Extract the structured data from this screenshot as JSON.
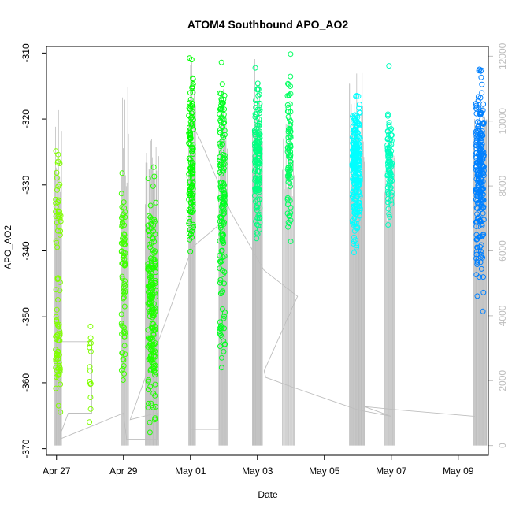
{
  "chart_data": {
    "type": "scatter",
    "title": "ATOM4 Southbound APO_AO2",
    "xlabel": "Date",
    "ylabel": "APO_AO2",
    "ylabel_right": "",
    "x_is_date": true,
    "xlim": [
      -0.3,
      12.9
    ],
    "ylim": [
      -371,
      -309
    ],
    "ylim_right": [
      -300,
      12300
    ],
    "x_ticks": [
      {
        "x": 0,
        "label": "Apr 27"
      },
      {
        "x": 2,
        "label": "Apr 29"
      },
      {
        "x": 4,
        "label": "May 01"
      },
      {
        "x": 6,
        "label": "May 03"
      },
      {
        "x": 8,
        "label": "May 05"
      },
      {
        "x": 10,
        "label": "May 07"
      },
      {
        "x": 12,
        "label": "May 09"
      }
    ],
    "y_ticks": [
      -370,
      -360,
      -350,
      -340,
      -330,
      -320,
      -310
    ],
    "y_ticks_right": [
      0,
      2000,
      4000,
      6000,
      8000,
      10000,
      12000
    ],
    "grid": false,
    "legend": "none",
    "colors": {
      "apr27": "#80ff00",
      "apr28": "#80ff00",
      "apr29": "#40ff00",
      "apr30": "#20ff00",
      "may01": "#00ff00",
      "may02": "#00ff20",
      "may03": "#00ff80",
      "may04": "#00ff60",
      "may06": "#00ffff",
      "may07": "#00ffc0",
      "may09": "#0080ff",
      "secondary_line": "#bebebe"
    },
    "series": [
      {
        "day": "Apr 27",
        "color_key": "apr27",
        "x_center": 0.05,
        "x_spread": 0.08,
        "groups": [
          [
            -334,
            5,
            30
          ],
          [
            -356,
            4,
            45
          ],
          [
            -345,
            10,
            12
          ],
          [
            -326,
            1,
            3
          ]
        ]
      },
      {
        "day": "Apr 28",
        "color_key": "apr28",
        "x_center": 1.0,
        "x_spread": 0.03,
        "groups": [
          [
            -359,
            4,
            15
          ]
        ]
      },
      {
        "day": "Apr 29",
        "color_key": "apr29",
        "x_center": 2.0,
        "x_spread": 0.06,
        "groups": [
          [
            -340,
            5,
            55
          ],
          [
            -357,
            3,
            12
          ],
          [
            -352,
            5,
            10
          ]
        ]
      },
      {
        "day": "Apr 30",
        "color_key": "apr30",
        "x_center": 2.85,
        "x_spread": 0.12,
        "groups": [
          [
            -346,
            4,
            110
          ],
          [
            -357,
            4,
            60
          ],
          [
            -338,
            4,
            25
          ]
        ]
      },
      {
        "day": "May 01",
        "color_key": "may01",
        "x_center": 4.02,
        "x_spread": 0.07,
        "groups": [
          [
            -318,
            4,
            35
          ],
          [
            -328,
            4,
            60
          ],
          [
            -336,
            3,
            20
          ]
        ]
      },
      {
        "day": "May 02",
        "color_key": "may02",
        "x_center": 4.95,
        "x_spread": 0.08,
        "groups": [
          [
            -325,
            5,
            70
          ],
          [
            -336,
            4,
            50
          ],
          [
            -352,
            4,
            25
          ],
          [
            -317,
            2,
            12
          ]
        ]
      },
      {
        "day": "May 03",
        "color_key": "may03",
        "x_center": 6.0,
        "x_spread": 0.08,
        "groups": [
          [
            -325,
            5,
            130
          ],
          [
            -333,
            3,
            30
          ]
        ]
      },
      {
        "day": "May 04",
        "color_key": "may04",
        "x_center": 6.95,
        "x_spread": 0.05,
        "groups": [
          [
            -324,
            5,
            70
          ],
          [
            -333,
            2,
            12
          ],
          [
            -316,
            2,
            6
          ]
        ]
      },
      {
        "day": "May 06",
        "color_key": "may06",
        "x_center": 8.95,
        "x_spread": 0.12,
        "groups": [
          [
            -326,
            4,
            210
          ],
          [
            -334,
            3,
            40
          ]
        ]
      },
      {
        "day": "May 07",
        "color_key": "may07",
        "x_center": 9.95,
        "x_spread": 0.07,
        "groups": [
          [
            -326,
            4,
            90
          ]
        ]
      },
      {
        "day": "May 09",
        "color_key": "may09",
        "x_center": 12.65,
        "x_spread": 0.12,
        "groups": [
          [
            -328,
            6,
            230
          ],
          [
            -313,
            1,
            4
          ],
          [
            -342,
            3,
            15
          ]
        ]
      }
    ],
    "secondary_series": {
      "name": "",
      "spikes": [
        {
          "x0": -0.05,
          "x1": 0.15,
          "n": 12,
          "top": 11000
        },
        {
          "x0": 1.95,
          "x1": 2.15,
          "n": 10,
          "top": 11500
        },
        {
          "x0": 2.65,
          "x1": 3.05,
          "n": 22,
          "top": 10000
        },
        {
          "x0": 3.95,
          "x1": 4.15,
          "n": 12,
          "top": 12200
        },
        {
          "x0": 4.85,
          "x1": 5.1,
          "n": 14,
          "top": 11000
        },
        {
          "x0": 5.85,
          "x1": 6.15,
          "n": 18,
          "top": 12000
        },
        {
          "x0": 6.75,
          "x1": 7.1,
          "n": 14,
          "top": 11000
        },
        {
          "x0": 8.75,
          "x1": 9.2,
          "n": 26,
          "top": 11500
        },
        {
          "x0": 9.8,
          "x1": 10.1,
          "n": 14,
          "top": 10200
        },
        {
          "x0": 12.45,
          "x1": 12.85,
          "n": 22,
          "top": 10500
        }
      ],
      "path": [
        [
          0.1,
          300
        ],
        [
          0.35,
          1000
        ],
        [
          1.05,
          1000
        ],
        [
          1.05,
          3200
        ],
        [
          0.1,
          3200
        ],
        [
          0.1,
          6000
        ],
        [
          0.1,
          1000
        ],
        [
          0.1,
          200
        ],
        [
          2.0,
          1000
        ],
        [
          2.1,
          200
        ],
        [
          3.0,
          200
        ],
        [
          3.0,
          1000
        ],
        [
          2.2,
          800
        ],
        [
          2.9,
          2800
        ],
        [
          4.05,
          6100
        ],
        [
          4.85,
          6800
        ],
        [
          4.85,
          500
        ],
        [
          4.0,
          500
        ],
        [
          4.0,
          10000
        ],
        [
          4.3,
          9400
        ],
        [
          5.2,
          7200
        ],
        [
          6.2,
          5400
        ],
        [
          7.2,
          4600
        ],
        [
          6.2,
          2300
        ],
        [
          6.25,
          2100
        ],
        [
          7.05,
          1800
        ],
        [
          9.0,
          1100
        ],
        [
          10.0,
          900
        ],
        [
          9.2,
          1200
        ],
        [
          10.2,
          1100
        ],
        [
          12.5,
          900
        ]
      ]
    }
  }
}
